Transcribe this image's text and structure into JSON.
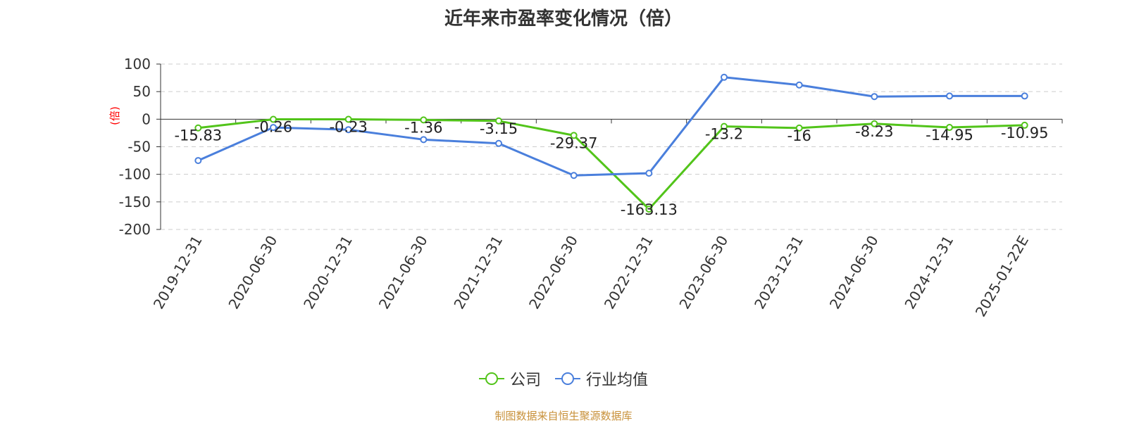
{
  "title": "近年来市盈率变化情况（倍）",
  "source": "制图数据来自恒生聚源数据库",
  "colors": {
    "company": "#52c41a",
    "industry": "#4a7fdc",
    "grid": "#cccccc",
    "axis": "#333333",
    "ylabel": "#ff0000",
    "source": "#c8913a"
  },
  "chart_data": {
    "type": "line",
    "title": "近年来市盈率变化情况（倍）",
    "ylabel": "(倍)",
    "xlabel": "",
    "ylim": [
      -200,
      100
    ],
    "yticks": [
      100,
      50,
      0,
      -50,
      -100,
      -150,
      -200
    ],
    "ytick_labels": [
      "100",
      "50",
      "0",
      "-50",
      "-100",
      "-150",
      "-200"
    ],
    "grid": true,
    "legend_position": "bottom-center",
    "categories": [
      "2019-12-31",
      "2020-06-30",
      "2020-12-31",
      "2021-06-30",
      "2021-12-31",
      "2022-06-30",
      "2022-12-31",
      "2023-06-30",
      "2023-12-31",
      "2024-06-30",
      "2024-12-31",
      "2025-01-22E"
    ],
    "series": [
      {
        "name": "公司",
        "color": "#52c41a",
        "values": [
          -15.83,
          -0.26,
          -0.23,
          -1.36,
          -3.15,
          -29.37,
          -163.13,
          -13.2,
          -16,
          -8.23,
          -14.95,
          -10.95
        ],
        "labels": [
          "-15.83",
          "-0.26",
          "-0.23",
          "-1.36",
          "-3.15",
          "-29.37",
          "-163.13",
          "-13.2",
          "-16",
          "-8.23",
          "-14.95",
          "-10.95"
        ]
      },
      {
        "name": "行业均值",
        "color": "#4a7fdc",
        "values": [
          -75,
          -15,
          -19,
          -37,
          -44,
          -102,
          -98,
          76,
          62,
          41,
          42,
          42
        ]
      }
    ]
  },
  "legend": {
    "company": "公司",
    "industry": "行业均值"
  }
}
